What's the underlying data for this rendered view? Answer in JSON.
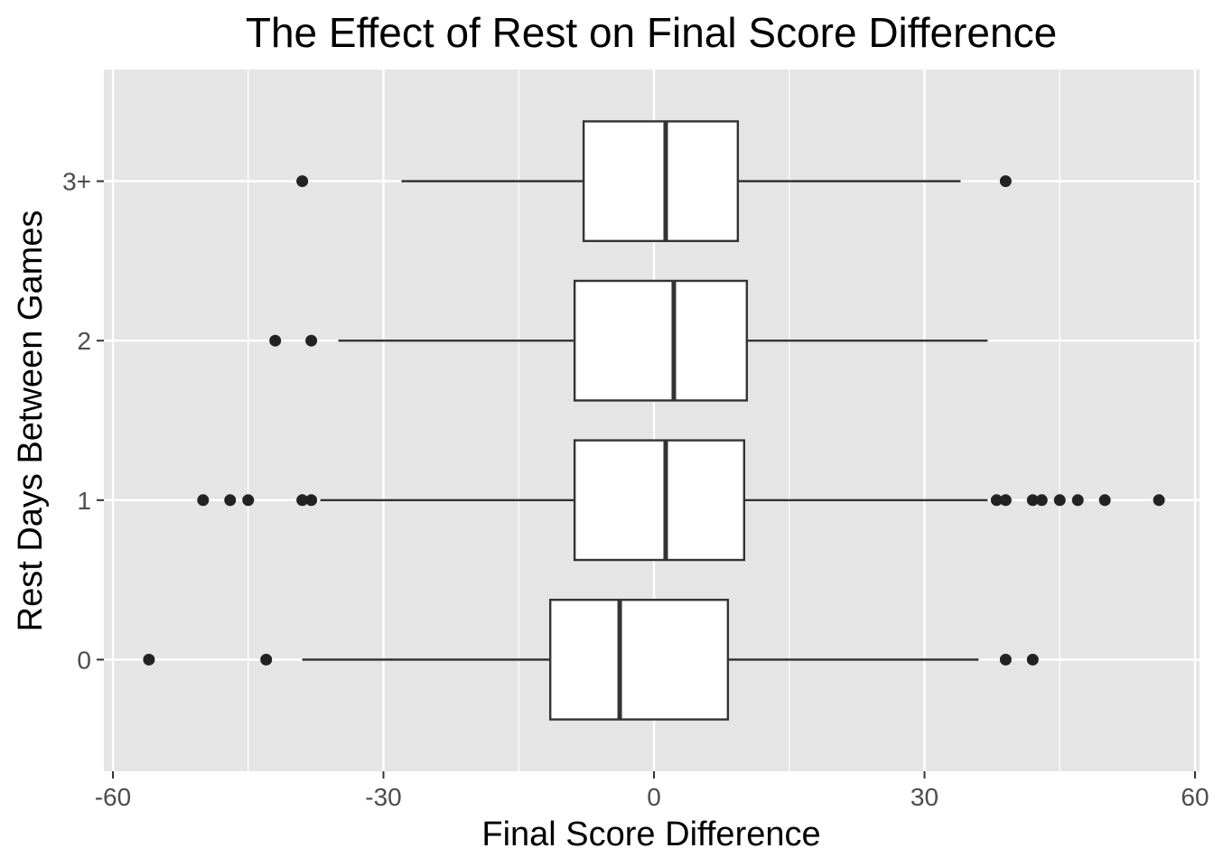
{
  "chart_data": {
    "type": "boxplot",
    "orientation": "horizontal",
    "title": "The Effect of Rest on Final Score Difference",
    "xlabel": "Final Score Difference",
    "ylabel": "Rest Days Between Games",
    "xlim": [
      -61,
      60.5
    ],
    "x_ticks": [
      -60,
      -30,
      0,
      30,
      60
    ],
    "x_tick_labels": [
      "-60",
      "-30",
      "0",
      "30",
      "60"
    ],
    "categories": [
      "0",
      "1",
      "2",
      "3+"
    ],
    "grid": true,
    "legend": "none",
    "colors": {
      "panel_background": "#e5e5e5",
      "grid": "#ffffff",
      "box_fill": "#ffffff",
      "line": "#333333",
      "outlier": "#222222",
      "tick_label": "#4d4d4d"
    },
    "series": [
      {
        "category": "0",
        "whisker_low": -39,
        "q1": -11.5,
        "median": -3.8,
        "q3": 8.2,
        "whisker_high": 36,
        "outliers": [
          -56,
          -43,
          39,
          42
        ]
      },
      {
        "category": "1",
        "whisker_low": -37,
        "q1": -8.8,
        "median": 1.3,
        "q3": 10,
        "whisker_high": 37,
        "outliers": [
          -50,
          -47,
          -45,
          -39,
          -38,
          38,
          39,
          42,
          43,
          45,
          47,
          50,
          56
        ]
      },
      {
        "category": "2",
        "whisker_low": -35,
        "q1": -8.8,
        "median": 2.2,
        "q3": 10.3,
        "whisker_high": 37,
        "outliers": [
          -42,
          -38
        ]
      },
      {
        "category": "3+",
        "whisker_low": -28,
        "q1": -7.8,
        "median": 1.3,
        "q3": 9.3,
        "whisker_high": 34,
        "outliers": [
          -39,
          39
        ]
      }
    ]
  }
}
